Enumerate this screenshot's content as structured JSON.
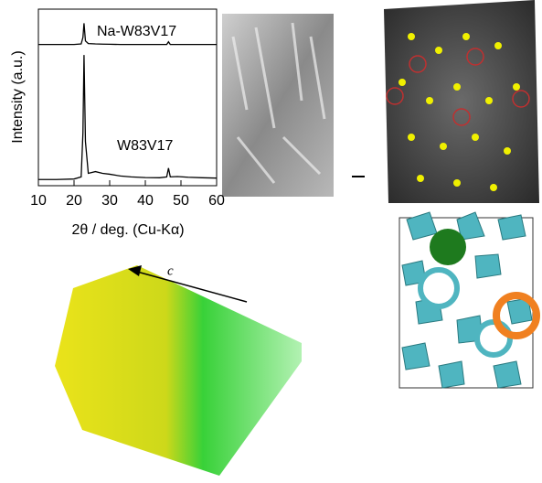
{
  "chart_data": {
    "type": "line",
    "x_label": "2θ / deg. (Cu-Kα)",
    "y_label": "Intensity (a.u.)",
    "x": [
      10,
      15,
      20,
      22,
      22.5,
      22.8,
      23.2,
      24,
      26,
      28,
      30,
      33,
      36,
      40,
      44,
      46,
      46.5,
      47,
      49,
      52,
      56,
      60
    ],
    "series": [
      {
        "name": "Na-W83V17",
        "color": "#000000",
        "values": [
          80,
          80,
          80,
          80.3,
          84,
          92,
          82,
          80.5,
          80.3,
          80.2,
          80.1,
          80,
          80,
          80,
          80,
          80,
          81.5,
          80,
          80,
          80,
          80,
          80
        ]
      },
      {
        "name": "W83V17",
        "color": "#000000",
        "values": [
          3.5,
          3.5,
          3.8,
          5,
          30,
          74,
          25,
          7,
          8,
          7,
          6.5,
          5.5,
          5,
          4.6,
          4.5,
          5,
          10,
          5,
          5.2,
          4.8,
          4.5,
          4.3
        ]
      }
    ],
    "xlim": [
      10,
      60
    ],
    "xticks": [
      10,
      20,
      30,
      40,
      50,
      60
    ],
    "ylim": [
      0,
      100
    ]
  },
  "structure": {
    "axis_label": "c"
  }
}
